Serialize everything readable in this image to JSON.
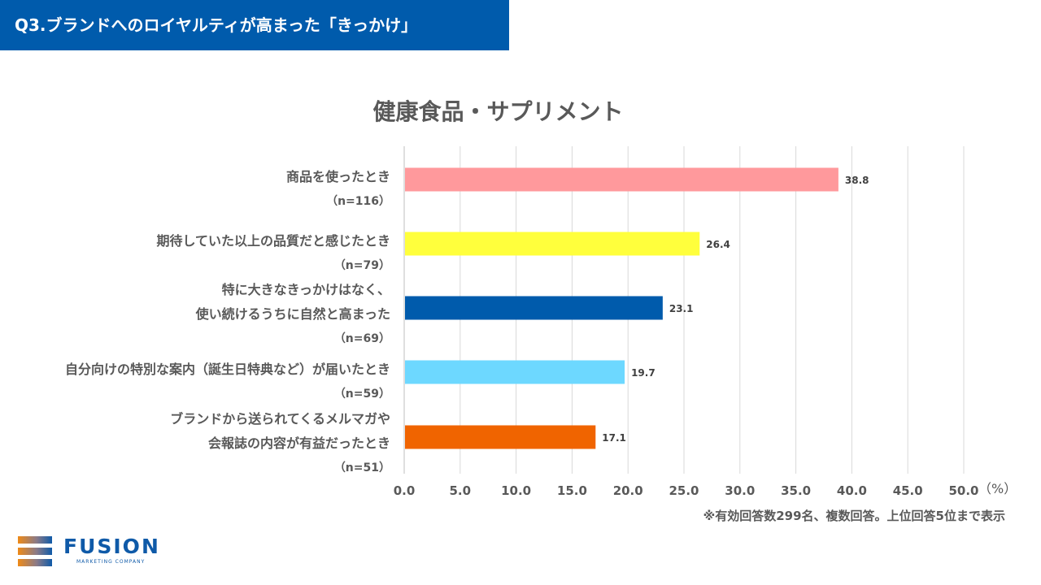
{
  "header": {
    "title": "Q3.ブランドへのロイヤルティが高まった「きっかけ」"
  },
  "chart_data": {
    "type": "bar",
    "orientation": "horizontal",
    "title": "健康食品・サプリメント",
    "categories": [
      {
        "lines": [
          "商品を使ったとき"
        ],
        "n": "（n=116）"
      },
      {
        "lines": [
          "期待していた以上の品質だと感じたとき"
        ],
        "n": "（n=79）"
      },
      {
        "lines": [
          "特に大きなきっかけはなく、",
          "使い続けるうちに自然と高まった"
        ],
        "n": "（n=69）"
      },
      {
        "lines": [
          "自分向けの特別な案内（誕生日特典など）が届いたとき"
        ],
        "n": "（n=59）"
      },
      {
        "lines": [
          "ブランドから送られてくるメルマガや",
          "会報誌の内容が有益だったとき"
        ],
        "n": "（n=51）"
      }
    ],
    "values": [
      38.8,
      26.4,
      23.1,
      19.7,
      17.1
    ],
    "value_labels": [
      "38.8",
      "26.4",
      "23.1",
      "19.7",
      "17.1"
    ],
    "colors": [
      "#ff999c",
      "#ffff3c",
      "#005bac",
      "#6dd8ff",
      "#f06400"
    ],
    "xlim": [
      0,
      50
    ],
    "x_ticks": [
      "0.0",
      "5.0",
      "10.0",
      "15.0",
      "20.0",
      "25.0",
      "30.0",
      "35.0",
      "40.0",
      "45.0",
      "50.0"
    ],
    "x_unit": "（%）",
    "grid": true
  },
  "footnote": "※有効回答数299名、複数回答。上位回答5位まで表示",
  "logo": {
    "name": "FUSION",
    "tagline": "MARKETING COMPANY"
  }
}
